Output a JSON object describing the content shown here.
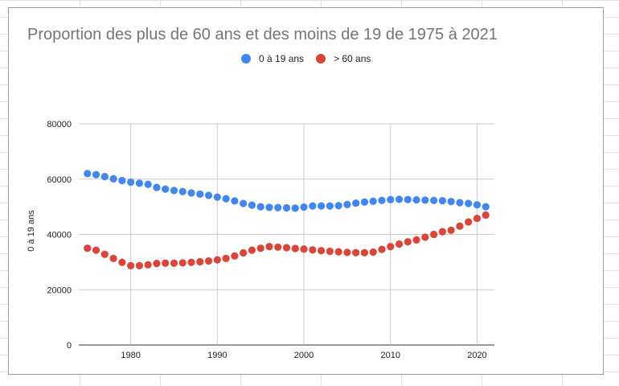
{
  "chart_data": {
    "type": "scatter",
    "title": "Proportion des plus de 60 ans et des moins de 19 de 1975 à 2021",
    "xlabel": "",
    "ylabel": "0 à 19 ans",
    "xlim": [
      1974,
      2022
    ],
    "ylim": [
      0,
      80000
    ],
    "x_ticks": [
      "1980",
      "1990",
      "2000",
      "2010",
      "2020"
    ],
    "y_ticks": [
      "0",
      "20000",
      "40000",
      "60000",
      "80000"
    ],
    "grid": true,
    "legend_position": "top",
    "x": [
      1975,
      1976,
      1977,
      1978,
      1979,
      1980,
      1981,
      1982,
      1983,
      1984,
      1985,
      1986,
      1987,
      1988,
      1989,
      1990,
      1991,
      1992,
      1993,
      1994,
      1995,
      1996,
      1997,
      1998,
      1999,
      2000,
      2001,
      2002,
      2003,
      2004,
      2005,
      2006,
      2007,
      2008,
      2009,
      2010,
      2011,
      2012,
      2013,
      2014,
      2015,
      2016,
      2017,
      2018,
      2019,
      2020,
      2021
    ],
    "series": [
      {
        "name": "0 à 19 ans",
        "color": "#4285f4",
        "values": [
          62000,
          61600,
          60900,
          60100,
          59500,
          58900,
          58500,
          58100,
          57000,
          56400,
          55900,
          55500,
          55000,
          54600,
          54100,
          53500,
          52900,
          52100,
          51200,
          50600,
          50000,
          49800,
          49700,
          49600,
          49500,
          49900,
          50300,
          50300,
          50300,
          50400,
          50800,
          51300,
          51700,
          52000,
          52300,
          52600,
          52700,
          52600,
          52500,
          52400,
          52300,
          52200,
          51900,
          51500,
          51200,
          50700,
          50000
        ]
      },
      {
        "name": "> 60 ans",
        "color": "#db4437",
        "values": [
          35000,
          34300,
          32800,
          31300,
          29900,
          28700,
          28700,
          29000,
          29500,
          29600,
          29600,
          29700,
          29900,
          30100,
          30400,
          30800,
          31300,
          32200,
          33300,
          34300,
          35000,
          35600,
          35400,
          35200,
          34900,
          34700,
          34400,
          34100,
          33900,
          33700,
          33500,
          33400,
          33400,
          33600,
          34600,
          35600,
          36500,
          37300,
          38000,
          39000,
          40000,
          41000,
          41500,
          43000,
          44500,
          45800,
          47000
        ]
      }
    ]
  }
}
